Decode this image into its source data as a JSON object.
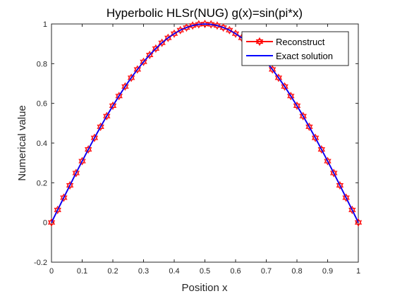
{
  "chart_data": {
    "type": "line",
    "title": "Hyperbolic HLSr(NUG) g(x)=sin(pi*x)",
    "xlabel": "Position x",
    "ylabel": "Numerical value",
    "xlim": [
      0,
      1
    ],
    "ylim": [
      -0.2,
      1
    ],
    "x_ticks": [
      "0",
      "0.1",
      "0.2",
      "0.3",
      "0.4",
      "0.5",
      "0.6",
      "0.7",
      "0.8",
      "0.9",
      "1"
    ],
    "y_ticks": [
      "-0.2",
      "0",
      "0.2",
      "0.4",
      "0.6",
      "0.8",
      "1"
    ],
    "grid": false,
    "legend_position": "top-right",
    "x": [
      0,
      0.02,
      0.04,
      0.06,
      0.08,
      0.1,
      0.12,
      0.14,
      0.16,
      0.18,
      0.2,
      0.22,
      0.24,
      0.26,
      0.28,
      0.3,
      0.32,
      0.34,
      0.36,
      0.38,
      0.4,
      0.42,
      0.44,
      0.46,
      0.48,
      0.5,
      0.52,
      0.54,
      0.56,
      0.58,
      0.6,
      0.62,
      0.64,
      0.66,
      0.68,
      0.7,
      0.72,
      0.74,
      0.76,
      0.78,
      0.8,
      0.82,
      0.84,
      0.86,
      0.88,
      0.9,
      0.92,
      0.94,
      0.96,
      0.98,
      1
    ],
    "series": [
      {
        "name": "Reconstruct",
        "color": "#ff0000",
        "marker": "hexagram",
        "values": [
          0,
          0.063,
          0.125,
          0.187,
          0.249,
          0.309,
          0.368,
          0.426,
          0.482,
          0.536,
          0.588,
          0.637,
          0.685,
          0.729,
          0.771,
          0.809,
          0.844,
          0.876,
          0.905,
          0.93,
          0.951,
          0.969,
          0.982,
          0.992,
          0.998,
          1,
          0.998,
          0.992,
          0.982,
          0.969,
          0.951,
          0.93,
          0.905,
          0.876,
          0.844,
          0.809,
          0.771,
          0.729,
          0.685,
          0.637,
          0.588,
          0.536,
          0.482,
          0.426,
          0.368,
          0.309,
          0.249,
          0.187,
          0.125,
          0.063,
          0
        ]
      },
      {
        "name": "Exact solution",
        "color": "#0000ff",
        "marker": "none",
        "values": [
          0,
          0.063,
          0.125,
          0.187,
          0.249,
          0.309,
          0.368,
          0.426,
          0.482,
          0.536,
          0.588,
          0.637,
          0.685,
          0.729,
          0.771,
          0.809,
          0.844,
          0.876,
          0.905,
          0.93,
          0.951,
          0.969,
          0.982,
          0.992,
          0.998,
          1,
          0.998,
          0.992,
          0.982,
          0.969,
          0.951,
          0.93,
          0.905,
          0.876,
          0.844,
          0.809,
          0.771,
          0.729,
          0.685,
          0.637,
          0.588,
          0.536,
          0.482,
          0.426,
          0.368,
          0.309,
          0.249,
          0.187,
          0.125,
          0.063,
          0
        ]
      }
    ]
  }
}
